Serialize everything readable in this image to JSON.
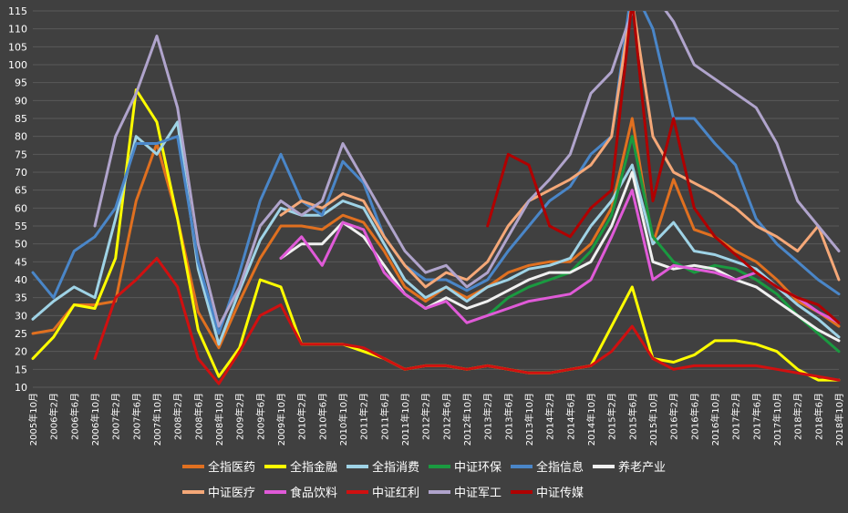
{
  "colors": {
    "background": "#404040",
    "grid": "#5a5a5a",
    "tick_text": "#ffffff",
    "legend_text": "#ffffff"
  },
  "chart_data": {
    "type": "line",
    "title": "",
    "xlabel": "",
    "ylabel": "",
    "ylim": [
      10,
      115
    ],
    "yticks": [
      10,
      15,
      20,
      25,
      30,
      35,
      40,
      45,
      50,
      55,
      60,
      65,
      70,
      75,
      80,
      85,
      90,
      95,
      100,
      105,
      110,
      115
    ],
    "grid": true,
    "legend_position": "bottom",
    "x_ticks": [
      "2005年10月",
      "2006年2月",
      "2006年6月",
      "2006年10月",
      "2007年2月",
      "2007年6月",
      "2007年10月",
      "2008年2月",
      "2008年6月",
      "2008年10月",
      "2009年2月",
      "2009年6月",
      "2009年10月",
      "2010年2月",
      "2010年6月",
      "2010年10月",
      "2011年2月",
      "2011年6月",
      "2011年10月",
      "2012年2月",
      "2012年6月",
      "2012年10月",
      "2013年2月",
      "2013年6月",
      "2013年10月",
      "2014年2月",
      "2014年6月",
      "2014年10月",
      "2015年2月",
      "2015年6月",
      "2015年10月",
      "2016年2月",
      "2016年6月",
      "2016年10月",
      "2017年2月",
      "2017年6月",
      "2017年10月",
      "2018年2月",
      "2018年6月",
      "2018年10月"
    ],
    "series": [
      {
        "name": "全指医药",
        "color": "#e07020",
        "values": [
          25,
          26,
          33,
          33,
          34,
          62,
          78,
          57,
          31,
          21,
          34,
          46,
          55,
          55,
          54,
          58,
          56,
          48,
          38,
          34,
          38,
          35,
          38,
          42,
          44,
          45,
          45,
          50,
          60,
          85,
          50,
          68,
          54,
          52,
          48,
          45,
          40,
          34,
          31,
          27
        ]
      },
      {
        "name": "全指金融",
        "color": "#ffff00",
        "values": [
          18,
          24,
          33,
          32,
          46,
          93,
          84,
          57,
          26,
          13,
          21,
          40,
          38,
          22,
          22,
          22,
          20,
          18,
          15,
          16,
          16,
          15,
          16,
          15,
          14,
          14,
          15,
          16,
          27,
          38,
          18,
          17,
          19,
          23,
          23,
          22,
          20,
          15,
          12,
          12
        ]
      },
      {
        "name": "全指消费",
        "color": "#9fd3e6",
        "values": [
          29,
          34,
          38,
          35,
          57,
          80,
          75,
          84,
          43,
          22,
          37,
          51,
          60,
          58,
          58,
          62,
          60,
          50,
          40,
          35,
          38,
          34,
          38,
          40,
          43,
          44,
          46,
          55,
          62,
          72,
          50,
          56,
          48,
          47,
          45,
          43,
          38,
          33,
          29,
          24
        ]
      },
      {
        "name": "中证环保",
        "color": "#1a9a40",
        "values": [
          null,
          null,
          null,
          null,
          null,
          null,
          null,
          null,
          null,
          null,
          null,
          null,
          null,
          null,
          null,
          null,
          null,
          null,
          null,
          null,
          null,
          null,
          30,
          35,
          38,
          40,
          42,
          48,
          58,
          80,
          52,
          45,
          42,
          44,
          43,
          40,
          36,
          30,
          25,
          20
        ]
      },
      {
        "name": "全指信息",
        "color": "#4a86c8",
        "values": [
          42,
          35,
          48,
          52,
          60,
          78,
          78,
          80,
          45,
          25,
          42,
          62,
          75,
          62,
          58,
          73,
          67,
          52,
          44,
          40,
          40,
          37,
          40,
          48,
          55,
          62,
          66,
          75,
          80,
          122,
          110,
          85,
          85,
          78,
          72,
          57,
          50,
          45,
          40,
          36
        ]
      },
      {
        "name": "养老产业",
        "color": "#f0f0f0",
        "values": [
          null,
          null,
          null,
          null,
          null,
          null,
          null,
          null,
          null,
          null,
          null,
          null,
          46,
          50,
          50,
          56,
          52,
          44,
          36,
          32,
          35,
          32,
          34,
          37,
          40,
          42,
          42,
          45,
          55,
          70,
          45,
          43,
          44,
          43,
          40,
          38,
          34,
          30,
          26,
          23
        ]
      },
      {
        "name": "中证医疗",
        "color": "#f5a878",
        "values": [
          null,
          null,
          null,
          null,
          null,
          null,
          null,
          null,
          null,
          null,
          null,
          null,
          58,
          62,
          60,
          64,
          62,
          52,
          44,
          38,
          42,
          40,
          45,
          55,
          62,
          65,
          68,
          72,
          80,
          118,
          80,
          70,
          67,
          64,
          60,
          55,
          52,
          48,
          55,
          40
        ]
      },
      {
        "name": "食品饮料",
        "color": "#e05ad8",
        "values": [
          null,
          null,
          null,
          null,
          null,
          null,
          null,
          null,
          null,
          null,
          null,
          null,
          46,
          52,
          44,
          56,
          54,
          42,
          36,
          32,
          34,
          28,
          30,
          32,
          34,
          35,
          36,
          40,
          52,
          65,
          40,
          44,
          43,
          42,
          40,
          42,
          38,
          35,
          31,
          28
        ]
      },
      {
        "name": "中证红利",
        "color": "#d01010",
        "values": [
          null,
          null,
          null,
          18,
          35,
          40,
          46,
          38,
          18,
          11,
          20,
          30,
          33,
          22,
          22,
          22,
          21,
          18,
          15,
          16,
          16,
          15,
          16,
          15,
          14,
          14,
          15,
          16,
          20,
          27,
          18,
          15,
          16,
          16,
          16,
          16,
          15,
          14,
          13,
          12
        ]
      },
      {
        "name": "中证军工",
        "color": "#b0a4cc",
        "values": [
          null,
          null,
          null,
          55,
          80,
          92,
          108,
          88,
          50,
          27,
          38,
          55,
          62,
          58,
          62,
          78,
          68,
          58,
          48,
          42,
          44,
          38,
          42,
          52,
          62,
          68,
          75,
          92,
          98,
          115,
          120,
          112,
          100,
          96,
          92,
          88,
          78,
          62,
          55,
          48
        ]
      },
      {
        "name": "中证传媒",
        "color": "#b00000",
        "values": [
          null,
          null,
          null,
          null,
          null,
          null,
          null,
          null,
          null,
          null,
          null,
          null,
          null,
          null,
          null,
          null,
          null,
          null,
          null,
          null,
          null,
          null,
          55,
          75,
          72,
          55,
          52,
          60,
          65,
          118,
          62,
          85,
          60,
          52,
          47,
          42,
          38,
          35,
          33,
          28
        ]
      }
    ]
  }
}
